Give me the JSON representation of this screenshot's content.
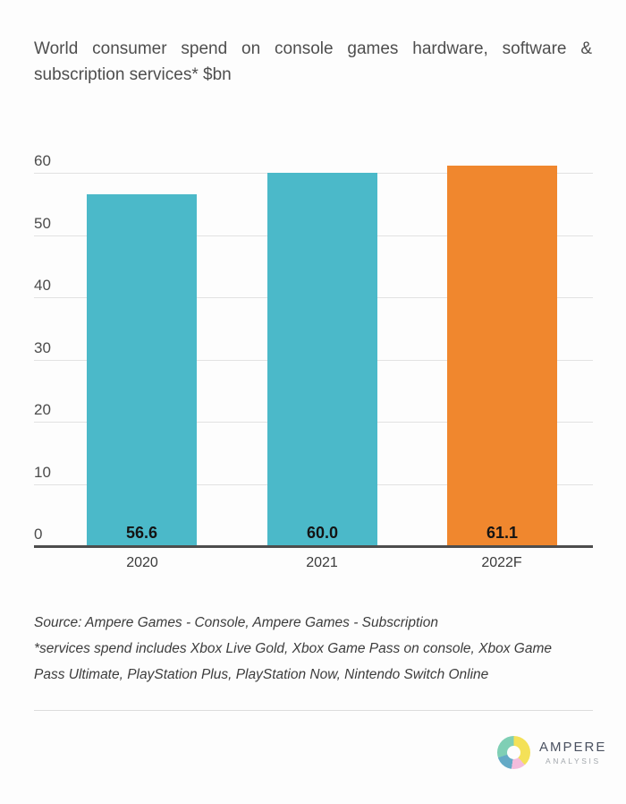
{
  "title": {
    "lines": [
      "World consumer spend on console games hardware, software &",
      "subscription services* $bn"
    ]
  },
  "chart_data": {
    "type": "bar",
    "title": "World consumer spend on console games hardware, software & subscription services* $bn",
    "categories": [
      "2020",
      "2021",
      "2022F"
    ],
    "values": [
      56.6,
      60.0,
      61.1
    ],
    "value_labels": [
      "56.6",
      "60.0",
      "61.1"
    ],
    "bar_colors": [
      "#4bb9c9",
      "#4bb9c9",
      "#f0872e"
    ],
    "xlabel": "",
    "ylabel": "",
    "ylim": [
      0,
      60
    ],
    "yticks": [
      0,
      10,
      20,
      30,
      40,
      50,
      60
    ],
    "grid": true,
    "legend": false,
    "gridline_color": "#e2e2e2",
    "axis_color": "#4d4d4d"
  },
  "footnote": {
    "lines": [
      "Source: Ampere Games - Console, Ampere Games - Subscription",
      "*services spend includes Xbox Live Gold, Xbox Game Pass on console, Xbox Game",
      "Pass Ultimate, PlayStation Plus, PlayStation Now, Nintendo Switch Online"
    ]
  },
  "logo": {
    "name": "AMPERE",
    "subtext": "ANALYSIS",
    "donut_colors": {
      "yellow": "#f4e158",
      "pink": "#f3bcdc",
      "blue": "#64aac6",
      "mint": "#7fcfb5"
    }
  }
}
